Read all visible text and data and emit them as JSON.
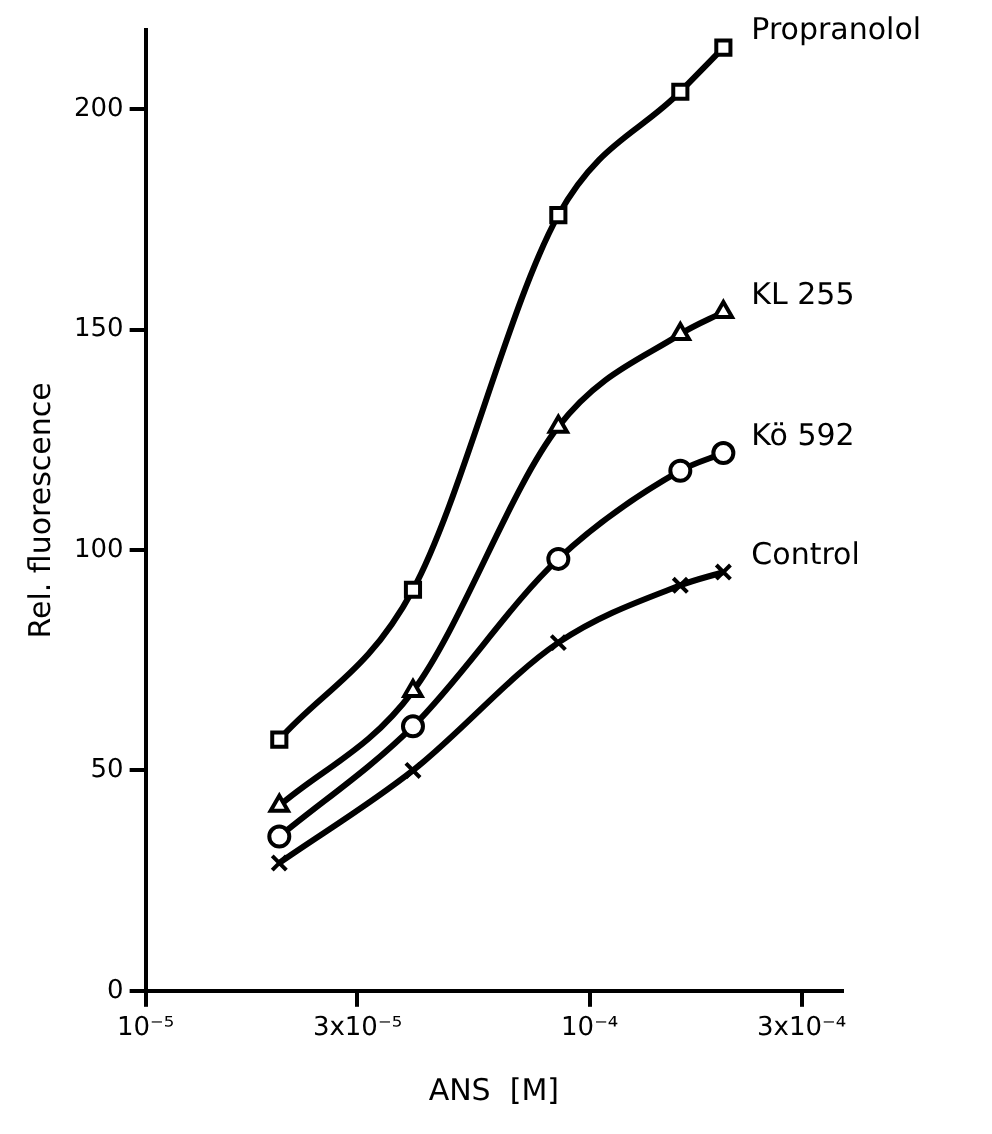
{
  "chart_data": {
    "type": "line",
    "xlabel": "ANS  [M]",
    "ylabel": "Rel. fluorescence",
    "log": "x",
    "grid": false,
    "legend": false,
    "line_style": "solid",
    "xlim": [
      1e-05,
      0.00037
    ],
    "xticks": [
      {
        "value": 1e-05,
        "label": "10⁻⁵"
      },
      {
        "value": 3e-05,
        "label": "3x10⁻⁵"
      },
      {
        "value": 0.0001,
        "label": "10⁻⁴"
      },
      {
        "value": 0.0003,
        "label": "3x10⁻⁴"
      }
    ],
    "ylim": [
      0,
      218
    ],
    "yticks": [
      0,
      50,
      100,
      150,
      200
    ],
    "x": [
      2e-05,
      4e-05,
      8.5e-05,
      0.00016,
      0.0002
    ],
    "series": [
      {
        "name": "Propranolol",
        "color": "#000000",
        "marker": "square",
        "values": [
          57,
          91,
          176,
          204,
          214
        ]
      },
      {
        "name": "KL 255",
        "color": "#000000",
        "marker": "triangle",
        "values": [
          42,
          68,
          128,
          149,
          154
        ]
      },
      {
        "name": "Kö 592",
        "color": "#000000",
        "marker": "circle",
        "values": [
          35,
          60,
          98,
          118,
          122
        ]
      },
      {
        "name": "Control",
        "color": "#000000",
        "marker": "cross",
        "values": [
          29,
          50,
          79,
          92,
          95
        ]
      }
    ]
  }
}
